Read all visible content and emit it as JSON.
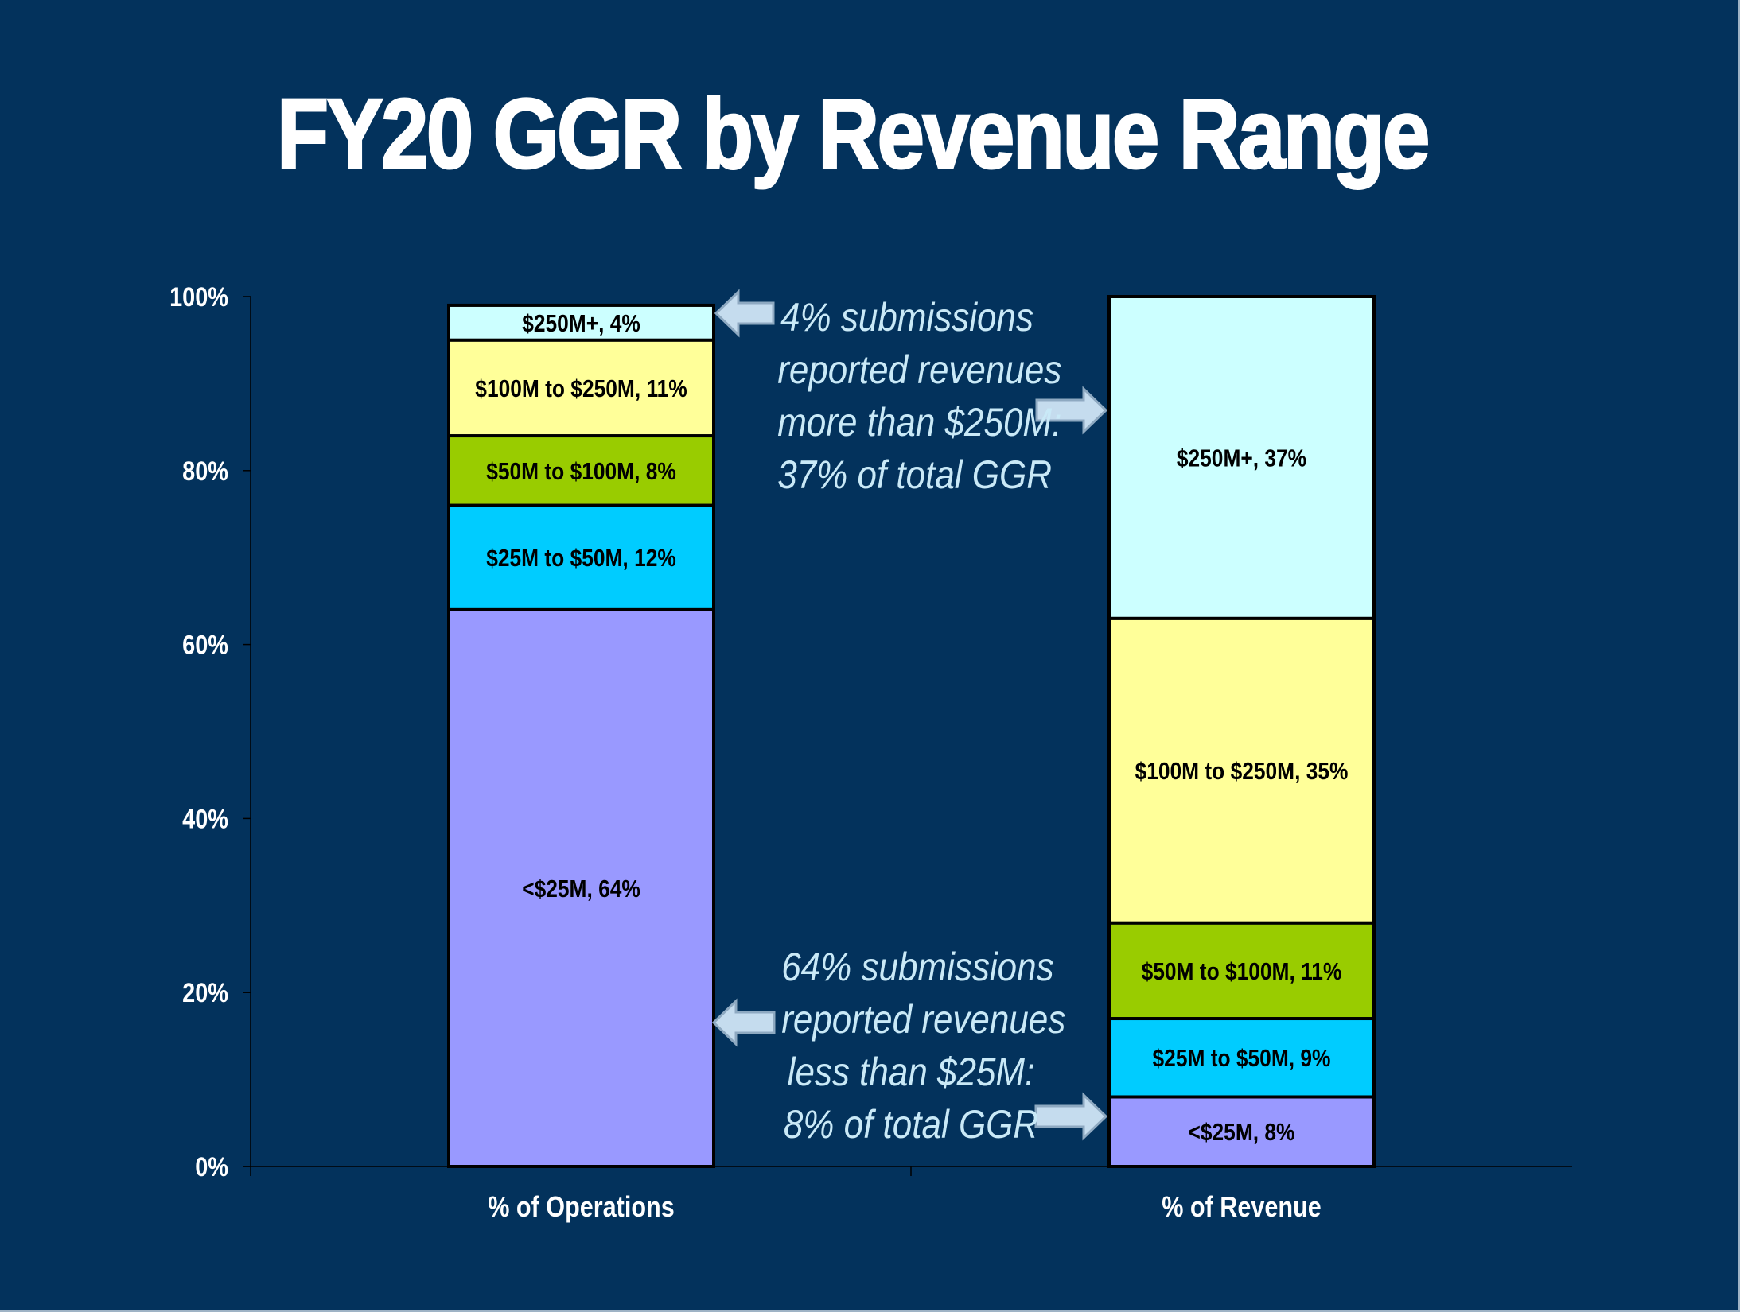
{
  "title": "FY20 GGR by Revenue Range",
  "colors": {
    "background": "#03325C",
    "lt25": "#9999FF",
    "25to50": "#00CCFF",
    "50to100": "#99CC00",
    "100to250": "#FFFF99",
    "250plus": "#CCFFFF",
    "annotation_text": "#C9E9F7",
    "arrow_fill": "#C5DCEE",
    "arrow_stroke": "#8EA9C1"
  },
  "chart_data": {
    "type": "bar",
    "stacked": true,
    "title": "FY20 GGR by Revenue Range",
    "xlabel": "",
    "ylabel": "",
    "ylim": [
      0,
      100
    ],
    "yticks": [
      "0%",
      "20%",
      "40%",
      "60%",
      "80%",
      "100%"
    ],
    "ytick_values": [
      0,
      20,
      40,
      60,
      80,
      100
    ],
    "grid": false,
    "legend": "none",
    "categories": [
      "% of Operations",
      "% of Revenue"
    ],
    "series": [
      {
        "name": "<$25M",
        "color": "#9999FF",
        "values": [
          64,
          8
        ],
        "labels": [
          "<$25M, 64%",
          "<$25M, 8%"
        ]
      },
      {
        "name": "$25M to $50M",
        "color": "#00CCFF",
        "values": [
          12,
          9
        ],
        "labels": [
          "$25M to $50M, 12%",
          "$25M to $50M, 9%"
        ]
      },
      {
        "name": "$50M to $100M",
        "color": "#99CC00",
        "values": [
          8,
          11
        ],
        "labels": [
          "$50M to $100M, 8%",
          "$50M to $100M, 11%"
        ]
      },
      {
        "name": "$100M to $250M",
        "color": "#FFFF99",
        "values": [
          11,
          35
        ],
        "labels": [
          "$100M to $250M, 11%",
          "$100M to $250M, 35%"
        ]
      },
      {
        "name": "$250M+",
        "color": "#CCFFFF",
        "values": [
          4,
          37
        ],
        "labels": [
          "$250M+, 4%",
          "$250M+, 37%"
        ]
      }
    ],
    "annotations": [
      {
        "lines": [
          "4% submissions",
          "reported revenues",
          "more than $250M:",
          "37% of total GGR"
        ]
      },
      {
        "lines": [
          "64% submissions",
          "reported revenues",
          "less than $25M:",
          "8% of total GGR"
        ]
      }
    ]
  }
}
